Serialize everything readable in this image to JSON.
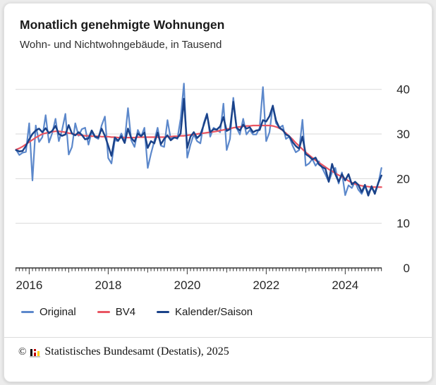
{
  "header": {
    "title": "Monatlich genehmigte Wohnungen",
    "subtitle": "Wohn- und Nichtwohngebäude, in Tausend"
  },
  "footer": {
    "copyright": "©",
    "text": "Statistisches Bundesamt (Destatis), 2025",
    "logo_colors": {
      "black": "#000000",
      "red": "#c00000",
      "gold": "#ffcc00"
    }
  },
  "chart_data": {
    "type": "line",
    "title": "Monatlich genehmigte Wohnungen",
    "subtitle": "Wohn- und Nichtwohngebäude, in Tausend",
    "unit": "Tausend",
    "legend_position": "bottom",
    "grid": true,
    "y_axis": {
      "side": "right",
      "ticks": [
        0,
        10,
        20,
        30,
        40
      ],
      "gridlines": [
        10,
        20,
        30,
        40
      ],
      "range": [
        0,
        44
      ]
    },
    "x_axis": {
      "labels": [
        "2016",
        "2018",
        "2020",
        "2022",
        "2024"
      ],
      "minor_tick": "monthly",
      "range": [
        "2015-09",
        "2024-12"
      ]
    },
    "categories": [
      "2015-09",
      "2015-10",
      "2015-11",
      "2015-12",
      "2016-01",
      "2016-02",
      "2016-03",
      "2016-04",
      "2016-05",
      "2016-06",
      "2016-07",
      "2016-08",
      "2016-09",
      "2016-10",
      "2016-11",
      "2016-12",
      "2017-01",
      "2017-02",
      "2017-03",
      "2017-04",
      "2017-05",
      "2017-06",
      "2017-07",
      "2017-08",
      "2017-09",
      "2017-10",
      "2017-11",
      "2017-12",
      "2018-01",
      "2018-02",
      "2018-03",
      "2018-04",
      "2018-05",
      "2018-06",
      "2018-07",
      "2018-08",
      "2018-09",
      "2018-10",
      "2018-11",
      "2018-12",
      "2019-01",
      "2019-02",
      "2019-03",
      "2019-04",
      "2019-05",
      "2019-06",
      "2019-07",
      "2019-08",
      "2019-09",
      "2019-10",
      "2019-11",
      "2019-12",
      "2020-01",
      "2020-02",
      "2020-03",
      "2020-04",
      "2020-05",
      "2020-06",
      "2020-07",
      "2020-08",
      "2020-09",
      "2020-10",
      "2020-11",
      "2020-12",
      "2021-01",
      "2021-02",
      "2021-03",
      "2021-04",
      "2021-05",
      "2021-06",
      "2021-07",
      "2021-08",
      "2021-09",
      "2021-10",
      "2021-11",
      "2021-12",
      "2022-01",
      "2022-02",
      "2022-03",
      "2022-04",
      "2022-05",
      "2022-06",
      "2022-07",
      "2022-08",
      "2022-09",
      "2022-10",
      "2022-11",
      "2022-12",
      "2023-01",
      "2023-02",
      "2023-03",
      "2023-04",
      "2023-05",
      "2023-06",
      "2023-07",
      "2023-08",
      "2023-09",
      "2023-10",
      "2023-11",
      "2023-12",
      "2024-01",
      "2024-02",
      "2024-03",
      "2024-04",
      "2024-05",
      "2024-06",
      "2024-07",
      "2024-08",
      "2024-09",
      "2024-10",
      "2024-11",
      "2024-12"
    ],
    "series": [
      {
        "name": "Original",
        "color": "#5c88cb",
        "width": 2.2,
        "values": [
          26.5,
          25.3,
          25.8,
          26.0,
          32.4,
          19.6,
          31.9,
          28.2,
          29.3,
          34.2,
          28.1,
          30.2,
          33.4,
          28.4,
          30.9,
          34.5,
          25.4,
          27.1,
          32.4,
          29.6,
          31.1,
          31.4,
          27.6,
          30.4,
          29.3,
          28.9,
          31.9,
          33.9,
          24.6,
          23.4,
          28.6,
          28.4,
          30.1,
          28.4,
          35.8,
          28.6,
          27.1,
          30.9,
          29.4,
          31.4,
          22.4,
          25.6,
          28.4,
          31.4,
          27.4,
          27.1,
          33.1,
          28.9,
          29.4,
          28.9,
          33.4,
          41.3,
          24.7,
          27.6,
          29.9,
          28.4,
          27.9,
          32.4,
          34.6,
          29.4,
          31.4,
          30.9,
          30.4,
          36.8,
          26.4,
          28.9,
          38.1,
          31.4,
          29.9,
          33.4,
          29.9,
          30.9,
          29.9,
          29.9,
          31.4,
          40.5,
          28.4,
          30.4,
          36.4,
          32.4,
          31.4,
          31.9,
          28.9,
          29.4,
          27.4,
          25.9,
          26.4,
          33.2,
          22.9,
          23.4,
          24.4,
          22.9,
          23.9,
          22.4,
          20.9,
          19.3,
          21.4,
          22.4,
          18.9,
          21.4,
          16.3,
          18.5,
          17.9,
          19.3,
          17.5,
          16.6,
          18.3,
          16.9,
          17.8,
          17.0,
          18.8,
          22.4
        ]
      },
      {
        "name": "BV4",
        "color": "#e95562",
        "width": 2.2,
        "values": [
          26.5,
          26.8,
          27.2,
          27.7,
          28.2,
          28.7,
          29.2,
          29.6,
          30.0,
          30.2,
          30.4,
          30.5,
          30.6,
          30.6,
          30.5,
          30.4,
          30.2,
          30.1,
          29.9,
          29.8,
          29.7,
          29.6,
          29.6,
          29.5,
          29.5,
          29.5,
          29.4,
          29.4,
          29.4,
          29.3,
          29.3,
          29.2,
          29.2,
          29.2,
          29.2,
          29.2,
          29.2,
          29.3,
          29.3,
          29.3,
          29.3,
          29.3,
          29.3,
          29.3,
          29.3,
          29.3,
          29.4,
          29.4,
          29.5,
          29.5,
          29.6,
          29.6,
          29.7,
          29.8,
          29.9,
          30.0,
          30.1,
          30.2,
          30.3,
          30.4,
          30.5,
          30.6,
          30.8,
          30.9,
          31.1,
          31.2,
          31.4,
          31.5,
          31.6,
          31.7,
          31.8,
          31.8,
          31.9,
          31.9,
          31.9,
          31.9,
          31.9,
          31.9,
          31.8,
          31.6,
          31.3,
          30.8,
          30.2,
          29.5,
          28.8,
          28.0,
          27.3,
          26.6,
          25.9,
          25.3,
          24.7,
          24.1,
          23.6,
          23.1,
          22.6,
          22.1,
          21.7,
          21.2,
          20.8,
          20.4,
          20.0,
          19.5,
          19.1,
          18.8,
          18.6,
          18.4,
          18.3,
          18.2,
          18.1,
          18.1,
          18.1,
          18.1
        ]
      },
      {
        "name": "Kalender/Saison",
        "color": "#1a4289",
        "width": 2.5,
        "values": [
          26.4,
          26.1,
          26.2,
          27.3,
          28.8,
          30.0,
          30.8,
          31.2,
          30.4,
          31.3,
          30.2,
          30.7,
          31.8,
          30.0,
          29.6,
          29.9,
          32.0,
          30.1,
          29.7,
          30.4,
          29.8,
          28.8,
          29.0,
          30.8,
          29.4,
          29.2,
          31.2,
          29.6,
          27.4,
          25.1,
          29.2,
          28.5,
          29.5,
          28.0,
          31.2,
          29.1,
          28.3,
          30.1,
          29.5,
          30.3,
          26.9,
          28.4,
          27.9,
          30.3,
          27.7,
          28.9,
          29.7,
          28.6,
          29.2,
          29.1,
          30.1,
          37.9,
          26.9,
          29.4,
          30.4,
          29.1,
          29.8,
          32.0,
          34.4,
          30.4,
          31.1,
          31.0,
          31.7,
          33.8,
          30.7,
          31.1,
          37.2,
          31.4,
          30.8,
          32.1,
          31.2,
          31.5,
          30.4,
          30.8,
          30.9,
          33.1,
          32.8,
          34.0,
          36.3,
          33.0,
          31.4,
          30.9,
          29.9,
          29.5,
          28.2,
          27.3,
          26.7,
          29.4,
          25.5,
          25.0,
          24.3,
          24.7,
          23.2,
          22.6,
          22.2,
          19.3,
          23.3,
          21.0,
          19.3,
          21.0,
          19.6,
          21.0,
          18.7,
          19.3,
          18.6,
          17.0,
          18.6,
          16.2,
          18.3,
          16.6,
          19.0,
          20.7
        ]
      }
    ]
  }
}
